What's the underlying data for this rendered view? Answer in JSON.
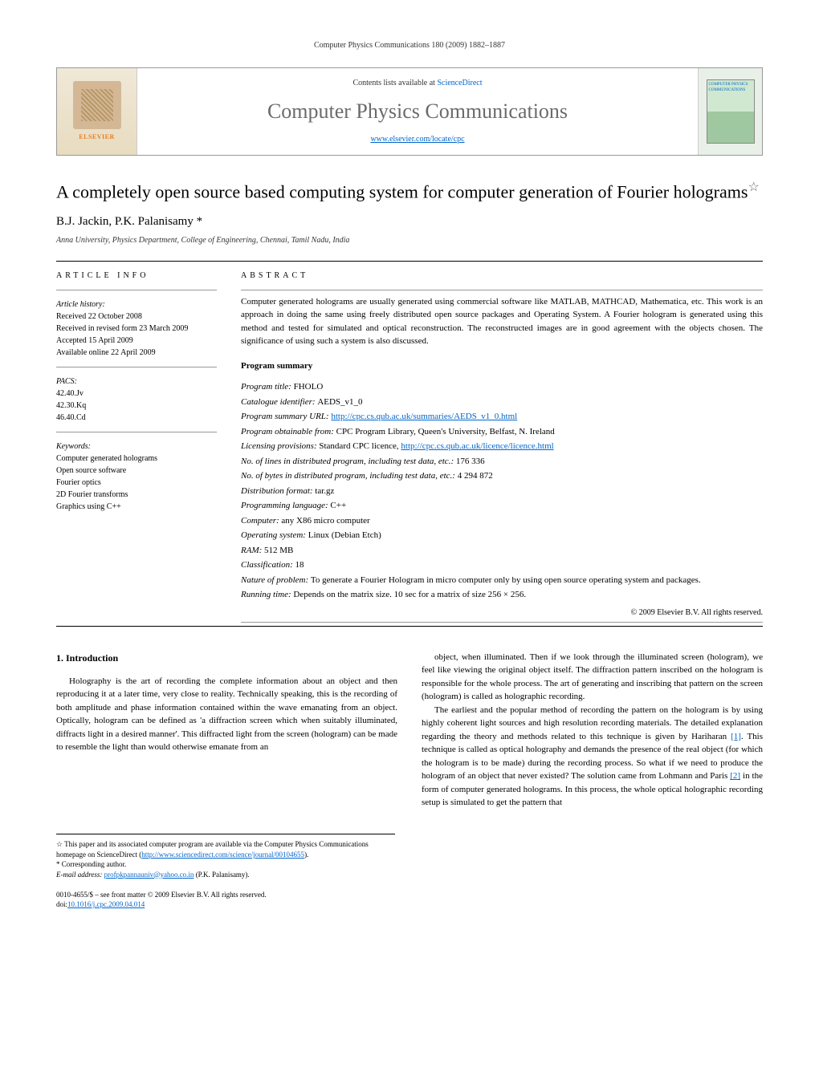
{
  "header_citation": "Computer Physics Communications 180 (2009) 1882–1887",
  "banner": {
    "publisher": "ELSEVIER",
    "contents_prefix": "Contents lists available at ",
    "contents_link": "ScienceDirect",
    "journal_name": "Computer Physics Communications",
    "journal_url": "www.elsevier.com/locate/cpc",
    "cover_text": "COMPUTER PHYSICS COMMUNICATIONS"
  },
  "article": {
    "title": "A completely open source based computing system for computer generation of Fourier holograms",
    "star": "☆",
    "authors": "B.J. Jackin, P.K. Palanisamy *",
    "affiliation": "Anna University, Physics Department, College of Engineering, Chennai, Tamil Nadu, India"
  },
  "article_info": {
    "heading": "ARTICLE INFO",
    "history_label": "Article history:",
    "history": [
      "Received 22 October 2008",
      "Received in revised form 23 March 2009",
      "Accepted 15 April 2009",
      "Available online 22 April 2009"
    ],
    "pacs_label": "PACS:",
    "pacs": [
      "42.40.Jv",
      "42.30.Kq",
      "46.40.Cd"
    ],
    "keywords_label": "Keywords:",
    "keywords": [
      "Computer generated holograms",
      "Open source software",
      "Fourier optics",
      "2D Fourier transforms",
      "Graphics using C++"
    ]
  },
  "abstract": {
    "heading": "ABSTRACT",
    "text": "Computer generated holograms are usually generated using commercial software like MATLAB, MATHCAD, Mathematica, etc. This work is an approach in doing the same using freely distributed open source packages and Operating System. A Fourier hologram is generated using this method and tested for simulated and optical reconstruction. The reconstructed images are in good agreement with the objects chosen. The significance of using such a system is also discussed.",
    "program_summary_title": "Program summary",
    "program_summary": [
      {
        "label": "Program title:",
        "value": "FHOLO"
      },
      {
        "label": "Catalogue identifier:",
        "value": "AEDS_v1_0"
      },
      {
        "label": "Program summary URL:",
        "value": "http://cpc.cs.qub.ac.uk/summaries/AEDS_v1_0.html",
        "is_link": true
      },
      {
        "label": "Program obtainable from:",
        "value": "CPC Program Library, Queen's University, Belfast, N. Ireland"
      },
      {
        "label": "Licensing provisions:",
        "value": "Standard CPC licence, ",
        "link": "http://cpc.cs.qub.ac.uk/licence/licence.html"
      },
      {
        "label": "No. of lines in distributed program, including test data, etc.:",
        "value": "176 336"
      },
      {
        "label": "No. of bytes in distributed program, including test data, etc.:",
        "value": "4 294 872"
      },
      {
        "label": "Distribution format:",
        "value": "tar.gz"
      },
      {
        "label": "Programming language:",
        "value": "C++"
      },
      {
        "label": "Computer:",
        "value": "any X86 micro computer"
      },
      {
        "label": "Operating system:",
        "value": "Linux (Debian Etch)"
      },
      {
        "label": "RAM:",
        "value": "512 MB"
      },
      {
        "label": "Classification:",
        "value": "18"
      },
      {
        "label": "Nature of problem:",
        "value": "To generate a Fourier Hologram in micro computer only by using open source operating system and packages."
      },
      {
        "label": "Running time:",
        "value": "Depends on the matrix size. 10 sec for a matrix of size 256 × 256."
      }
    ],
    "copyright": "© 2009 Elsevier B.V. All rights reserved."
  },
  "body": {
    "section_heading": "1. Introduction",
    "col1_p1": "Holography is the art of recording the complete information about an object and then reproducing it at a later time, very close to reality. Technically speaking, this is the recording of both amplitude and phase information contained within the wave emanating from an object. Optically, hologram can be defined as 'a diffraction screen which when suitably illuminated, diffracts light in a desired manner'. This diffracted light from the screen (hologram) can be made to resemble the light than would otherwise emanate from an",
    "col2_p1": "object, when illuminated. Then if we look through the illuminated screen (hologram), we feel like viewing the original object itself. The diffraction pattern inscribed on the hologram is responsible for the whole process. The art of generating and inscribing that pattern on the screen (hologram) is called as holographic recording.",
    "col2_p2": "The earliest and the popular method of recording the pattern on the hologram is by using highly coherent light sources and high resolution recording materials. The detailed explanation regarding the theory and methods related to this technique is given by Hariharan [1]. This technique is called as optical holography and demands the presence of the real object (for which the hologram is to be made) during the recording process. So what if we need to produce the hologram of an object that never existed? The solution came from Lohmann and Paris [2] in the form of computer generated holograms. In this process, the whole optical holographic recording setup is simulated to get the pattern that",
    "ref1": "[1]",
    "ref2": "[2]"
  },
  "footnotes": {
    "star_note": "This paper and its associated computer program are available via the Computer Physics Communications homepage on ScienceDirect (",
    "star_link": "http://www.sciencedirect.com/science/journal/00104655",
    "star_close": ").",
    "corresp": "* Corresponding author.",
    "email_label": "E-mail address:",
    "email": "profpkpannauniv@yahoo.co.in",
    "email_name": "(P.K. Palanisamy)."
  },
  "footer": {
    "line1": "0010-4655/$ – see front matter © 2009 Elsevier B.V. All rights reserved.",
    "doi_label": "doi:",
    "doi": "10.1016/j.cpc.2009.04.014"
  },
  "colors": {
    "link": "#0066cc",
    "text": "#000000",
    "gray_text": "#6b6b6b",
    "elsevier_orange": "#e67e22",
    "banner_bg": "#f0e8d8"
  },
  "typography": {
    "title_fontsize": 22,
    "journal_fontsize": 26,
    "body_fontsize": 11,
    "info_fontsize": 10,
    "footnote_fontsize": 9
  }
}
